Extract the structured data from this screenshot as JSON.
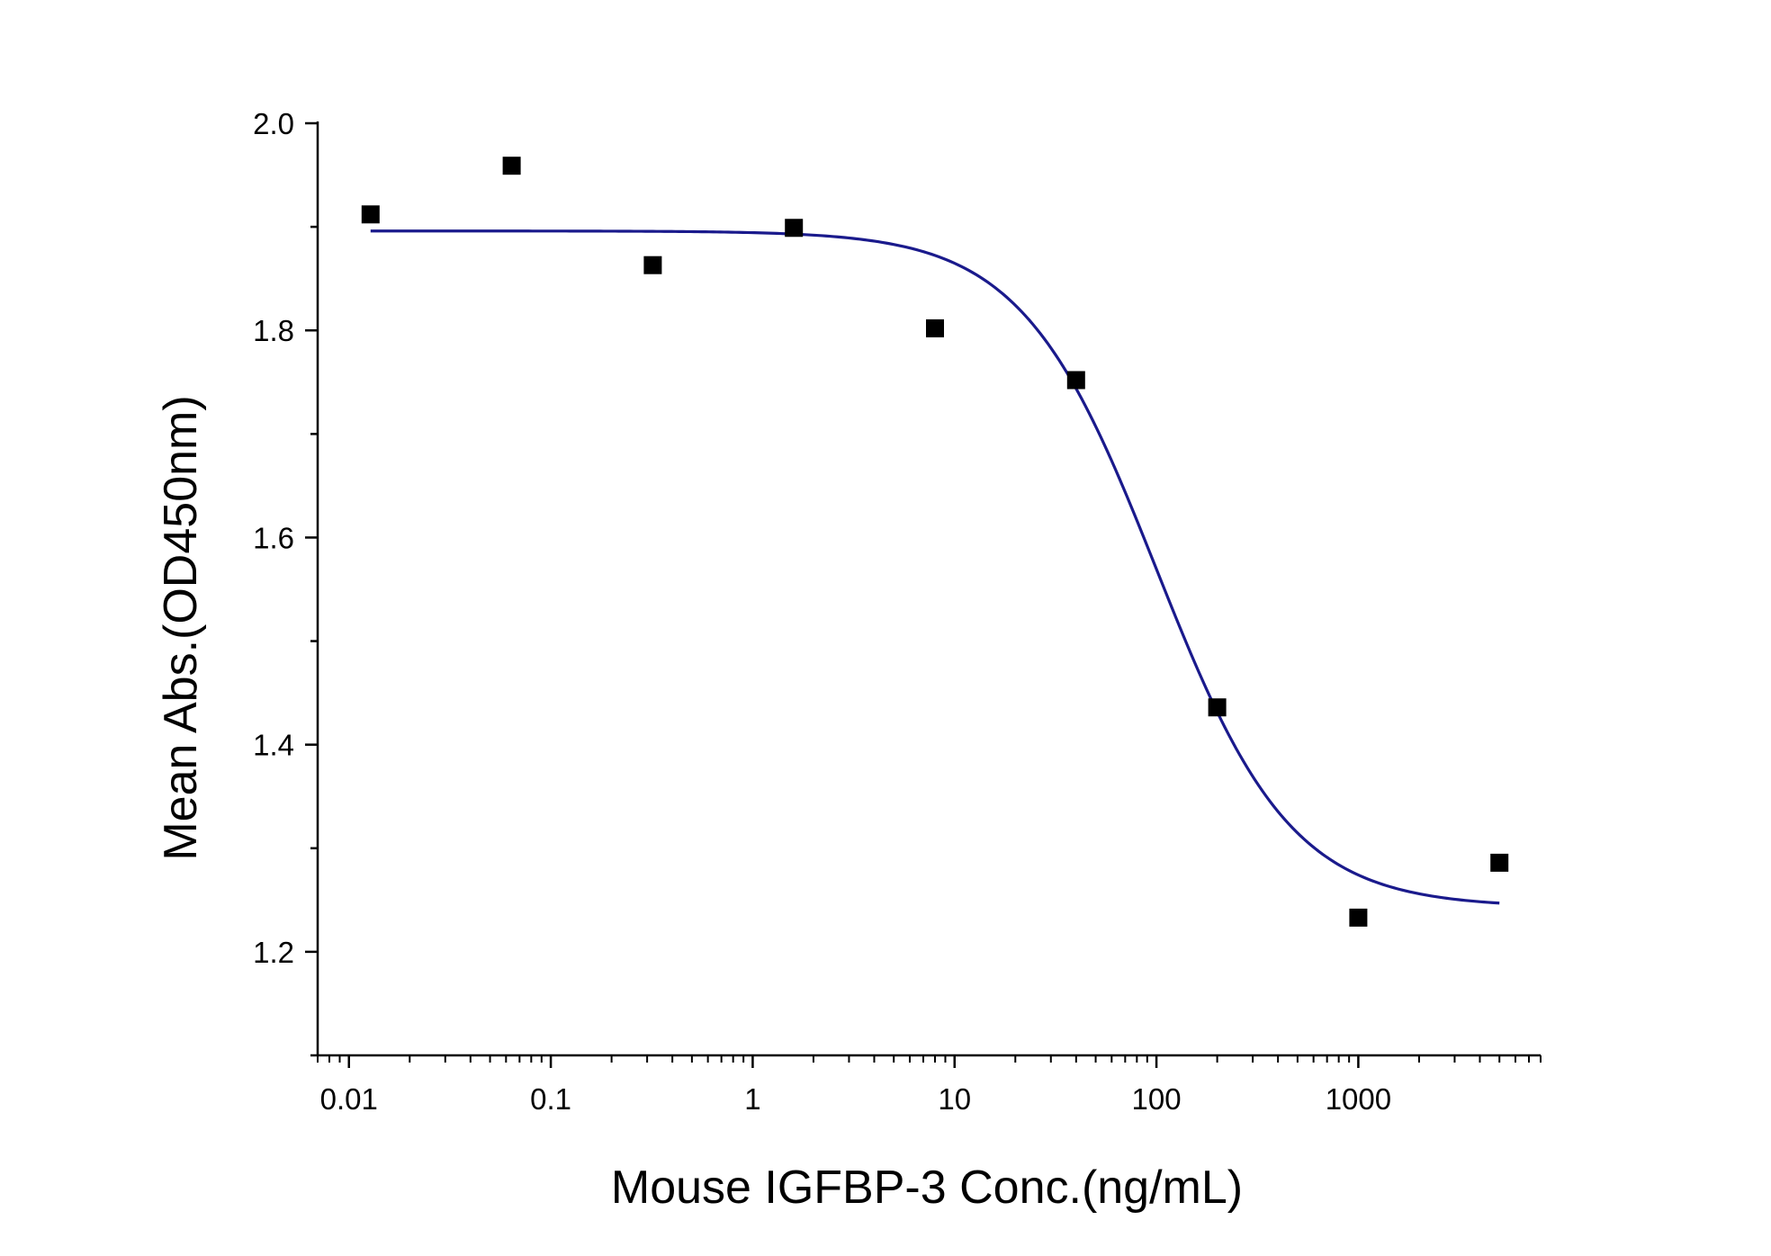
{
  "chart_data": {
    "type": "scatter",
    "title": "",
    "xlabel": "Mouse IGFBP-3 Conc.(ng/mL)",
    "ylabel": "Mean Abs.(OD450nm)",
    "xscale": "log",
    "xlim": [
      0.007,
      8000
    ],
    "ylim": [
      1.1,
      2.0
    ],
    "x_ticks": [
      0.01,
      0.1,
      1,
      10,
      100,
      1000
    ],
    "x_tick_labels": [
      "0.01",
      "0.1",
      "1",
      "10",
      "100",
      "1000"
    ],
    "y_ticks": [
      1.2,
      1.4,
      1.6,
      1.8,
      2.0
    ],
    "y_tick_labels": [
      "1.2",
      "1.4",
      "1.6",
      "1.8",
      "2.0"
    ],
    "y_minor_ticks": [
      1.1,
      1.3,
      1.5,
      1.7,
      1.9
    ],
    "grid": false,
    "legend": "none",
    "series": [
      {
        "kind": "points",
        "marker": "square",
        "color": "#000000",
        "x": [
          0.0128,
          0.064,
          0.32,
          1.6,
          8,
          40,
          200,
          1000,
          5000
        ],
        "y": [
          1.912,
          1.959,
          1.863,
          1.899,
          1.802,
          1.752,
          1.436,
          1.233,
          1.286
        ]
      },
      {
        "kind": "fit",
        "color": "#1a1a8c",
        "model": "4PL",
        "top": 1.896,
        "bottom": 1.243,
        "ec50": 100,
        "hill": 1.3,
        "x_range": [
          0.0128,
          5000
        ]
      }
    ]
  }
}
